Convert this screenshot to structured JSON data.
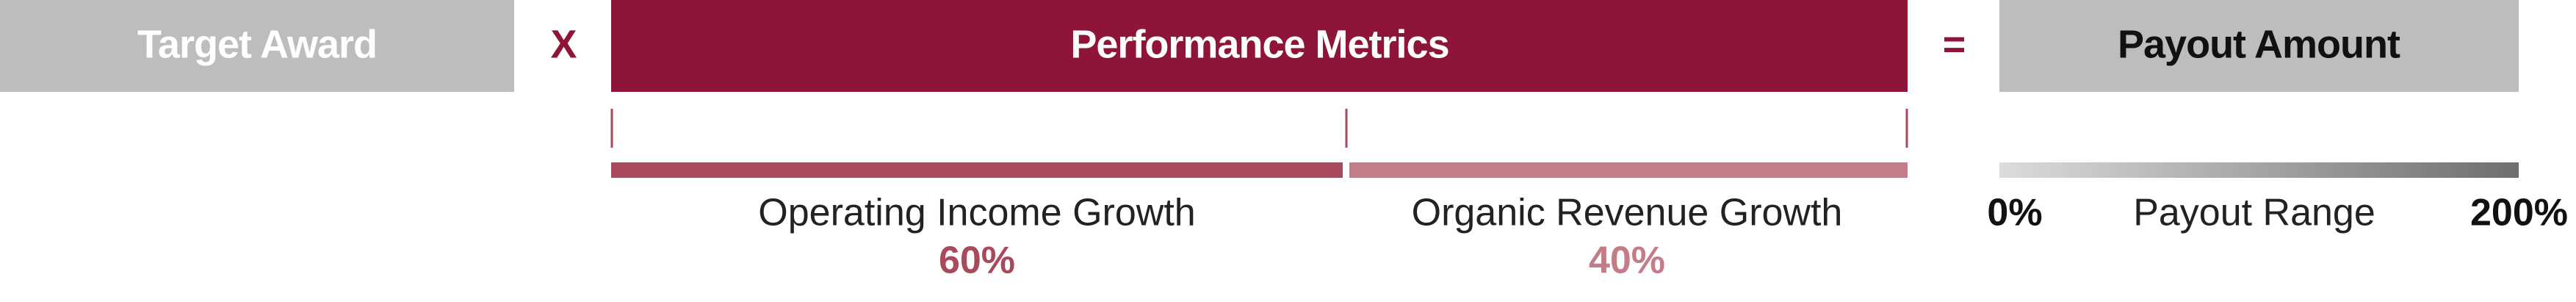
{
  "boxes": {
    "target": "Target Award",
    "times": "X",
    "metrics": "Performance Metrics",
    "equals": "=",
    "payout": "Payout Amount"
  },
  "metrics": [
    {
      "label": "Operating Income Growth",
      "weight": "60%"
    },
    {
      "label": "Organic Revenue Growth",
      "weight": "40%"
    }
  ],
  "payout_range": {
    "min": "0%",
    "label": "Payout Range",
    "max": "200%"
  }
}
